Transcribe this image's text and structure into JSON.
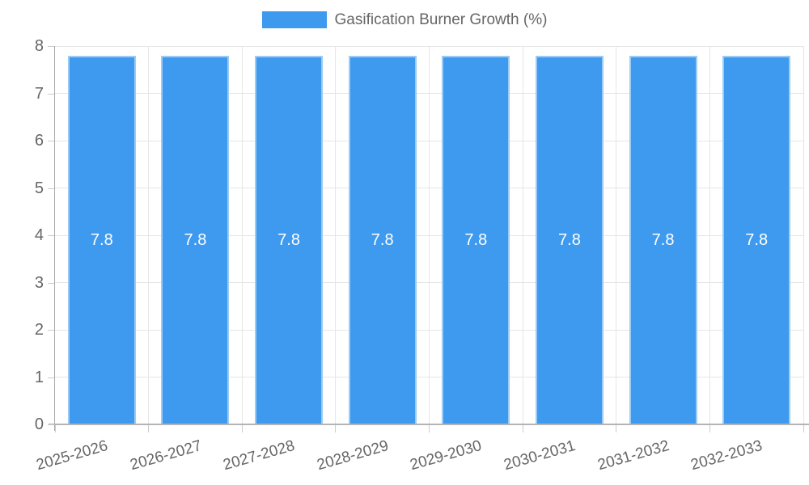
{
  "chart_data": {
    "type": "bar",
    "legend": {
      "position": "top",
      "label": "Gasification Burner Growth (%)"
    },
    "categories": [
      "2025-2026",
      "2026-2027",
      "2027-2028",
      "2028-2029",
      "2029-2030",
      "2030-2031",
      "2031-2032",
      "2032-2033"
    ],
    "values": [
      7.8,
      7.8,
      7.8,
      7.8,
      7.8,
      7.8,
      7.8,
      7.8
    ],
    "value_labels": [
      "7.8",
      "7.8",
      "7.8",
      "7.8",
      "7.8",
      "7.8",
      "7.8",
      "7.8"
    ],
    "title": "",
    "xlabel": "",
    "ylabel": "",
    "ylim": [
      0,
      8
    ],
    "yticks": [
      0,
      1,
      2,
      3,
      4,
      5,
      6,
      7,
      8
    ],
    "grid": true,
    "colors": {
      "bar_fill": "#3e9aef",
      "bar_border": "#9ccbf6",
      "value_label_text": "#ffffff",
      "axis_text": "#666666",
      "gridline": "#e6e6e6",
      "axis_line": "#aaaaaa",
      "background": "#ffffff"
    }
  }
}
